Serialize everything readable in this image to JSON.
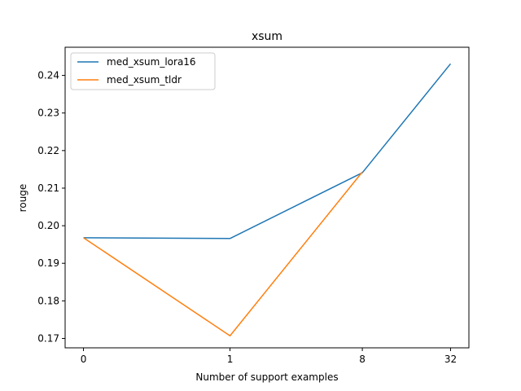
{
  "chart_data": {
    "type": "line",
    "title": "xsum",
    "xlabel": "Number of support examples",
    "ylabel": "rouge",
    "x": [
      0,
      1,
      8,
      32
    ],
    "x_tick_labels": [
      "0",
      "1",
      "8",
      "32"
    ],
    "y_ticks": [
      0.17,
      0.18,
      0.19,
      0.2,
      0.21,
      0.22,
      0.23,
      0.24
    ],
    "y_tick_labels": [
      "0.17",
      "0.18",
      "0.19",
      "0.20",
      "0.21",
      "0.22",
      "0.23",
      "0.24"
    ],
    "ylim": [
      0.1675,
      0.2475
    ],
    "grid": false,
    "legend_position": "top-left",
    "series": [
      {
        "name": "med_xsum_lora16",
        "color": "#1f77b4",
        "values": [
          0.1968,
          0.1966,
          0.2141,
          0.2431
        ]
      },
      {
        "name": "med_xsum_tldr",
        "color": "#ff7f0e",
        "values": [
          0.1968,
          0.1707,
          0.2143,
          null
        ]
      }
    ]
  }
}
